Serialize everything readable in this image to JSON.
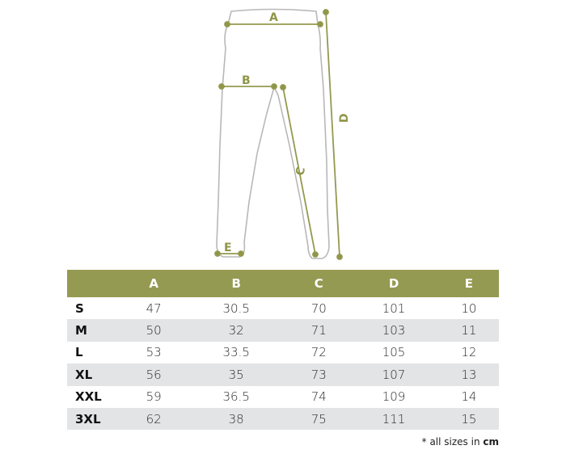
{
  "diagram": {
    "labels": {
      "a": "A",
      "b": "B",
      "c": "C",
      "d": "D",
      "e": "E"
    },
    "accent_color": "#94994f",
    "outline_color": "#b5b5b5"
  },
  "table": {
    "header_color": "#959a52",
    "columns": [
      "",
      "A",
      "B",
      "C",
      "D",
      "E"
    ],
    "rows": [
      {
        "size": "S",
        "values": [
          "47",
          "30.5",
          "70",
          "101",
          "10"
        ]
      },
      {
        "size": "M",
        "values": [
          "50",
          "32",
          "71",
          "103",
          "11"
        ]
      },
      {
        "size": "L",
        "values": [
          "53",
          "33.5",
          "72",
          "105",
          "12"
        ]
      },
      {
        "size": "XL",
        "values": [
          "56",
          "35",
          "73",
          "107",
          "13"
        ]
      },
      {
        "size": "XXL",
        "values": [
          "59",
          "36.5",
          "74",
          "109",
          "14"
        ]
      },
      {
        "size": "3XL",
        "values": [
          "62",
          "38",
          "75",
          "111",
          "15"
        ]
      }
    ]
  },
  "footnote": {
    "text": "* all sizes in ",
    "unit": "cm"
  }
}
